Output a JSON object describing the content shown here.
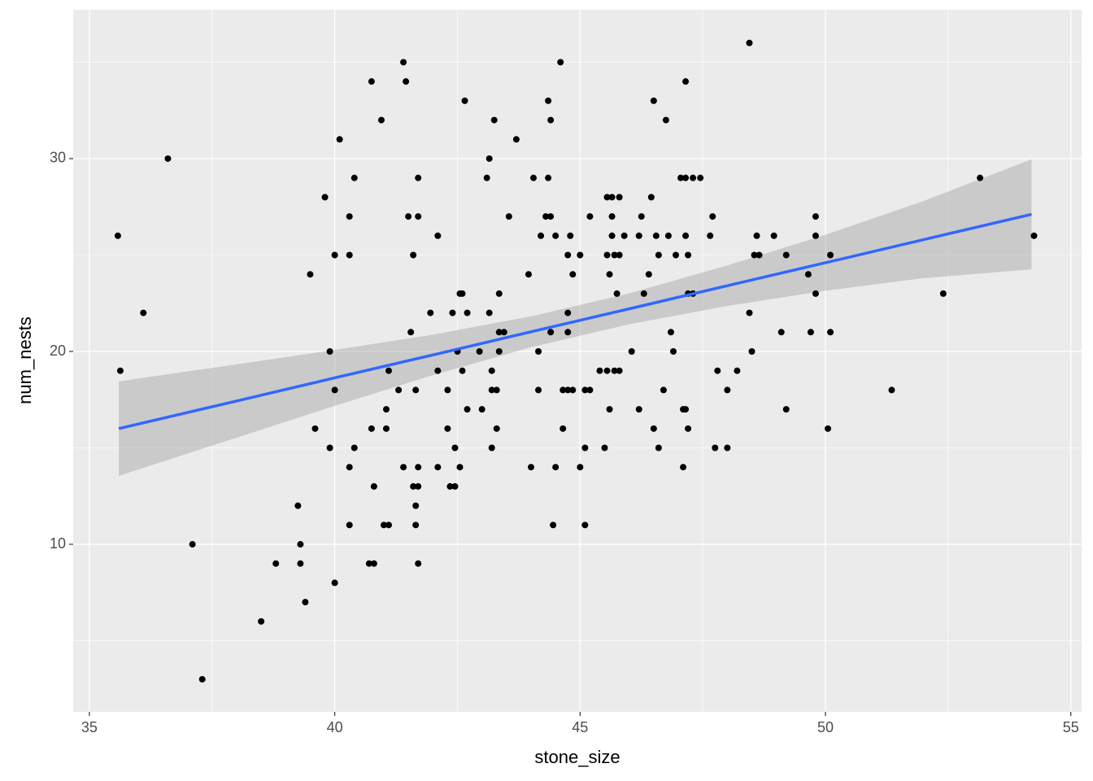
{
  "chart_data": {
    "type": "scatter",
    "x_label": "stone_size",
    "y_label": "num_nests",
    "xlim": [
      34.67,
      55.22
    ],
    "ylim": [
      1.31,
      37.72
    ],
    "xticks": [
      35,
      40,
      45,
      50,
      55
    ],
    "yticks": [
      10,
      20,
      30
    ],
    "xminor": [
      37.5,
      42.5,
      47.5,
      52.5
    ],
    "yminor": [
      5,
      15,
      25,
      35
    ],
    "grid": true,
    "color": "#000000",
    "x": [
      35.58,
      35.63,
      36.1,
      36.6,
      37.1,
      37.3,
      38.5,
      38.8,
      39.25,
      39.3,
      39.3,
      39.4,
      39.5,
      39.6,
      39.8,
      39.9,
      39.9,
      40.0,
      40.0,
      40.0,
      40.1,
      40.3,
      40.3,
      40.3,
      40.3,
      40.4,
      40.4,
      40.7,
      40.75,
      40.75,
      40.8,
      40.8,
      40.95,
      41.0,
      41.05,
      41.05,
      41.1,
      41.1,
      41.3,
      41.4,
      41.4,
      41.45,
      41.5,
      41.55,
      41.6,
      41.6,
      41.65,
      41.65,
      41.65,
      41.7,
      41.7,
      41.7,
      41.7,
      41.7,
      41.95,
      42.1,
      42.1,
      42.1,
      42.3,
      42.3,
      42.35,
      42.4,
      42.45,
      42.45,
      42.5,
      42.55,
      42.55,
      42.6,
      42.6,
      42.65,
      42.7,
      42.7,
      42.95,
      43.0,
      43.1,
      43.15,
      43.15,
      43.2,
      43.2,
      43.2,
      43.25,
      43.3,
      43.3,
      43.35,
      43.35,
      43.35,
      43.45,
      43.55,
      43.7,
      43.95,
      44.0,
      44.05,
      44.15,
      44.15,
      44.2,
      44.3,
      44.35,
      44.35,
      44.4,
      44.4,
      44.4,
      44.45,
      44.5,
      44.5,
      44.6,
      44.65,
      44.65,
      44.75,
      44.75,
      44.75,
      44.75,
      44.8,
      44.85,
      44.85,
      45.0,
      45.0,
      45.1,
      45.1,
      45.1,
      45.2,
      45.2,
      45.4,
      45.5,
      45.55,
      45.55,
      45.55,
      45.6,
      45.6,
      45.65,
      45.65,
      45.65,
      45.7,
      45.7,
      45.75,
      45.8,
      45.8,
      45.8,
      45.9,
      46.05,
      46.2,
      46.2,
      46.25,
      46.3,
      46.4,
      46.45,
      46.5,
      46.5,
      46.55,
      46.6,
      46.6,
      46.7,
      46.75,
      46.8,
      46.85,
      46.9,
      46.95,
      47.05,
      47.1,
      47.1,
      47.15,
      47.15,
      47.15,
      47.15,
      47.2,
      47.2,
      47.2,
      47.3,
      47.3,
      47.45,
      47.65,
      47.7,
      47.75,
      47.8,
      48.0,
      48.0,
      48.2,
      48.45,
      48.45,
      48.5,
      48.55,
      48.6,
      48.65,
      48.95,
      49.1,
      49.2,
      49.2,
      49.65,
      49.7,
      49.8,
      49.8,
      49.8,
      50.05,
      50.1,
      50.1,
      51.35,
      52.4,
      53.15,
      54.25
    ],
    "y": [
      26,
      19,
      22,
      30,
      10,
      3,
      6,
      9,
      12,
      10,
      9,
      7,
      24,
      16,
      28,
      15,
      20,
      18,
      25,
      8,
      31,
      27,
      25,
      14,
      11,
      15,
      29,
      9,
      34,
      16,
      9,
      13,
      32,
      11,
      17,
      16,
      11,
      19,
      18,
      14,
      35,
      34,
      27,
      21,
      25,
      13,
      12,
      11,
      18,
      14,
      29,
      27,
      13,
      9,
      22,
      14,
      19,
      26,
      16,
      18,
      13,
      22,
      15,
      13,
      20,
      14,
      23,
      19,
      23,
      33,
      17,
      22,
      20,
      17,
      29,
      30,
      22,
      15,
      19,
      18,
      32,
      16,
      18,
      23,
      21,
      20,
      21,
      27,
      31,
      24,
      14,
      29,
      18,
      20,
      26,
      27,
      29,
      33,
      32,
      27,
      21,
      11,
      26,
      14,
      35,
      18,
      16,
      22,
      21,
      18,
      25,
      26,
      24,
      18,
      25,
      14,
      15,
      11,
      18,
      18,
      27,
      19,
      15,
      25,
      28,
      19,
      24,
      17,
      27,
      26,
      28,
      25,
      19,
      23,
      28,
      25,
      19,
      26,
      20,
      26,
      17,
      27,
      23,
      24,
      28,
      33,
      16,
      26,
      25,
      15,
      18,
      32,
      26,
      21,
      20,
      25,
      29,
      17,
      14,
      34,
      26,
      29,
      17,
      25,
      23,
      16,
      29,
      23,
      29,
      26,
      27,
      15,
      19,
      18,
      15,
      19,
      36,
      22,
      20,
      25,
      26,
      25,
      26,
      21,
      17,
      25,
      24,
      21,
      27,
      26,
      23,
      16,
      25,
      21,
      18,
      23,
      29,
      26
    ],
    "smooth": {
      "color": "#3366ff",
      "band_color": "#999999",
      "x": [
        35.6,
        38,
        40,
        42,
        44,
        46,
        48,
        50,
        52,
        54.2
      ],
      "y": [
        16.0,
        17.43,
        18.63,
        19.82,
        21.02,
        22.21,
        23.41,
        24.6,
        25.8,
        27.11
      ],
      "lower": [
        13.55,
        15.53,
        17.18,
        18.77,
        20.22,
        21.41,
        22.36,
        23.15,
        23.8,
        24.26
      ],
      "upper": [
        18.45,
        19.33,
        20.08,
        20.87,
        21.82,
        23.01,
        24.46,
        26.05,
        27.8,
        29.96
      ]
    }
  }
}
